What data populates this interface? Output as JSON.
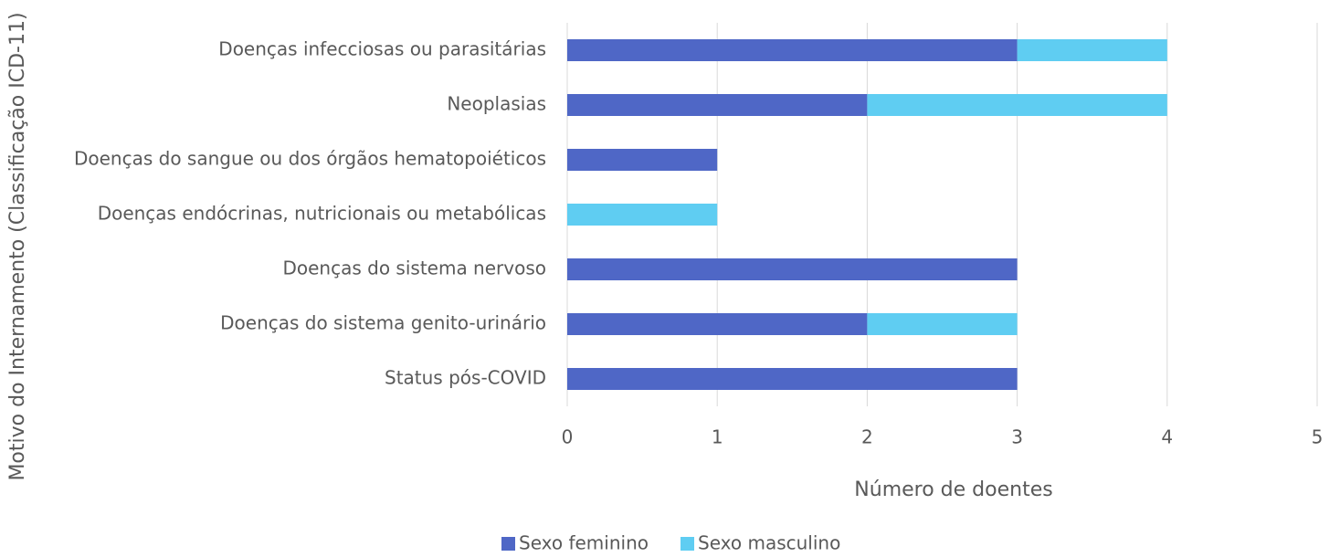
{
  "chart_data": {
    "type": "stacked_barh",
    "categories": [
      "Doenças infecciosas ou parasitárias",
      "Neoplasias",
      "Doenças do sangue ou dos órgãos hematopoiéticos",
      "Doenças endócrinas, nutricionais ou metabólicas",
      "Doenças do sistema nervoso",
      "Doenças do sistema genito-urinário",
      "Status pós-COVID"
    ],
    "series": [
      {
        "name": "Sexo feminino",
        "color": "#4f67c6",
        "values": [
          3,
          2,
          1,
          0,
          3,
          2,
          3
        ]
      },
      {
        "name": "Sexo masculino",
        "color": "#5fcdf2",
        "values": [
          1,
          2,
          0,
          1,
          0,
          1,
          0
        ]
      }
    ],
    "xlim": [
      0,
      5
    ],
    "xticks": [
      0,
      1,
      2,
      3,
      4,
      5
    ],
    "grid": true,
    "x_label": "Número de doentes",
    "y_label": "Motivo do Internamento (Classificação ICD-11)",
    "legend": "bottom"
  }
}
